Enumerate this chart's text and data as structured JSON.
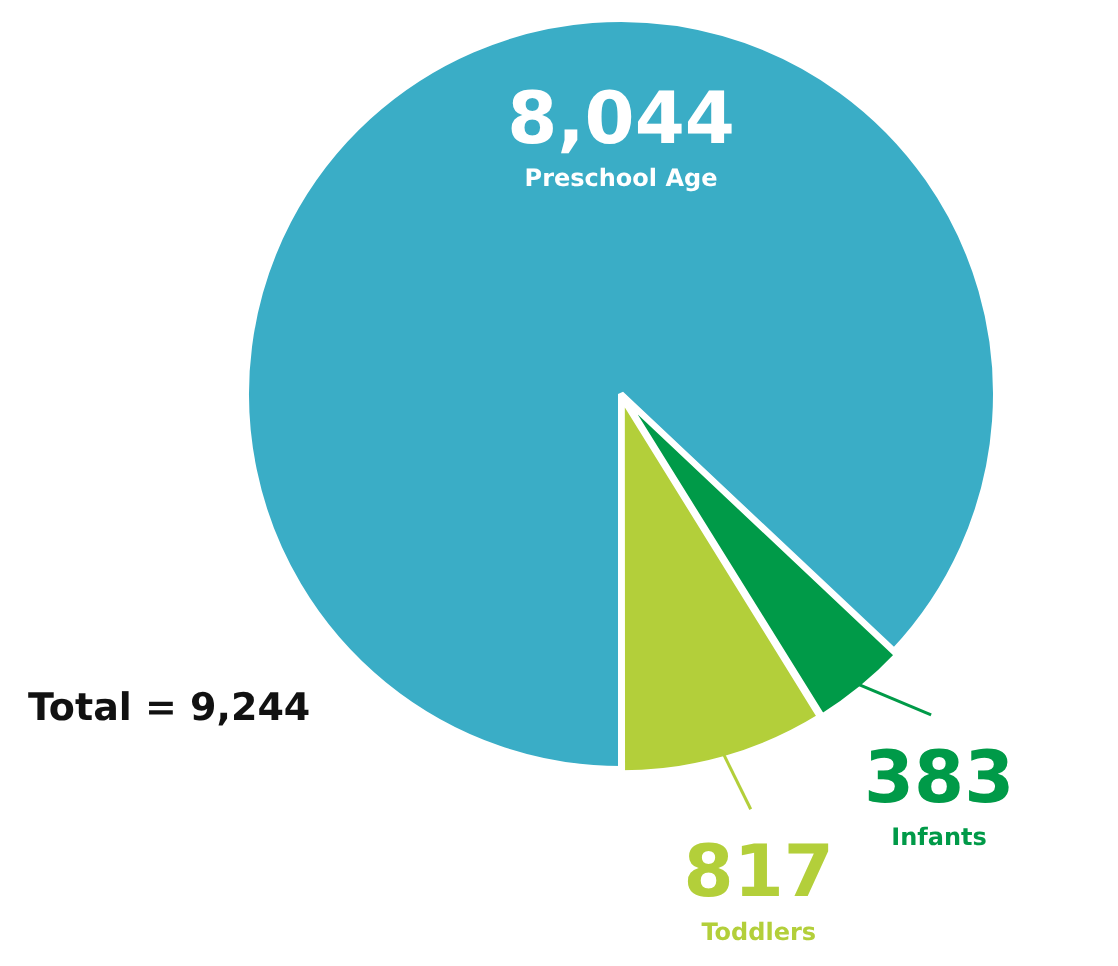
{
  "chart_data": {
    "type": "pie",
    "categories": [
      "Preschool Age",
      "Infants",
      "Toddlers"
    ],
    "values": [
      8044,
      383,
      817
    ],
    "colors": [
      "#3aadc6",
      "#009a48",
      "#b3cf3a"
    ],
    "value_labels": [
      "8,044",
      "383",
      "817"
    ],
    "annotations": [
      "Total = 9,244"
    ]
  }
}
